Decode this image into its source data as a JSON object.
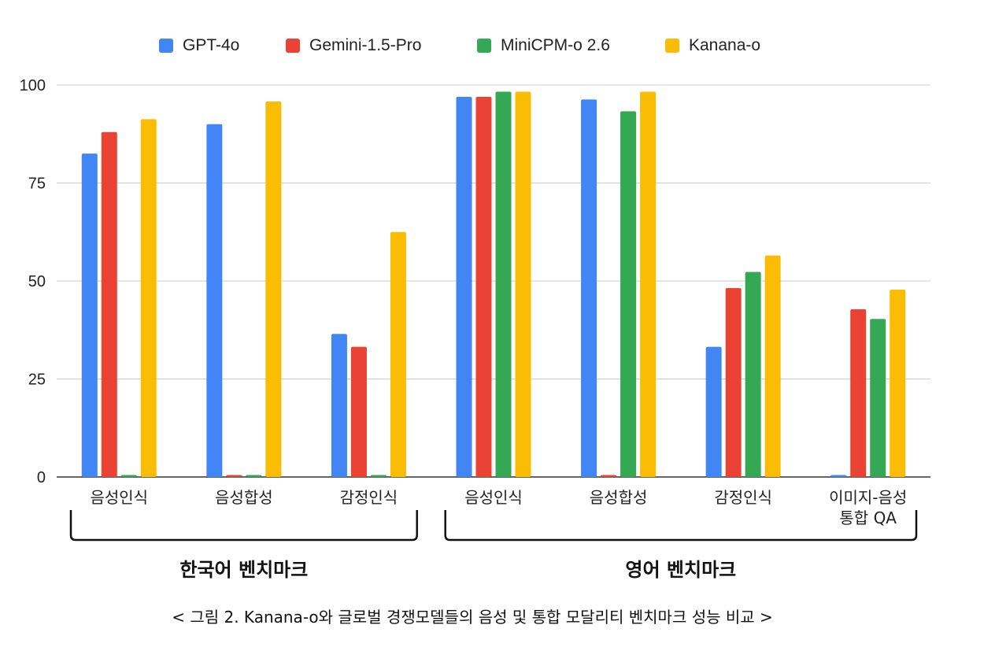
{
  "chart_data": {
    "type": "bar",
    "ylim": [
      0,
      100
    ],
    "yticks": [
      "0",
      "25",
      "50",
      "75",
      "100"
    ],
    "grid": true,
    "legend_position": "top",
    "series": [
      {
        "name": "GPT-4o",
        "color": "#4285F4",
        "values": [
          82.5,
          90,
          36.5,
          97,
          96.3,
          33.2,
          0.5
        ]
      },
      {
        "name": "Gemini-1.5-Pro",
        "color": "#EA4335",
        "values": [
          88,
          0.5,
          33.2,
          97,
          0.5,
          48.2,
          42.8
        ]
      },
      {
        "name": "MiniCPM-o 2.6",
        "color": "#34A853",
        "values": [
          0.5,
          0.5,
          0.5,
          98.3,
          93.3,
          52.3,
          40.3
        ]
      },
      {
        "name": "Kanana-o",
        "color": "#FBBC04",
        "values": [
          91.3,
          95.8,
          62.5,
          98.3,
          98.3,
          56.5,
          47.8
        ]
      }
    ],
    "categories": [
      [
        "음성인식"
      ],
      [
        "음성합성"
      ],
      [
        "감정인식"
      ],
      [
        "음성인식"
      ],
      [
        "음성합성"
      ],
      [
        "감정인식"
      ],
      [
        "이미지-음성",
        "통합 QA"
      ]
    ],
    "groups": [
      {
        "label": "한국어 벤치마크",
        "categories": [
          0,
          1,
          2
        ]
      },
      {
        "label": "영어 벤치마크",
        "categories": [
          3,
          4,
          5,
          6
        ]
      }
    ]
  },
  "caption": "< 그림 2. Kanana-o와 글로벌 경쟁모델들의 음성 및 통합 모달리티 벤치마크 성능 비교 >"
}
